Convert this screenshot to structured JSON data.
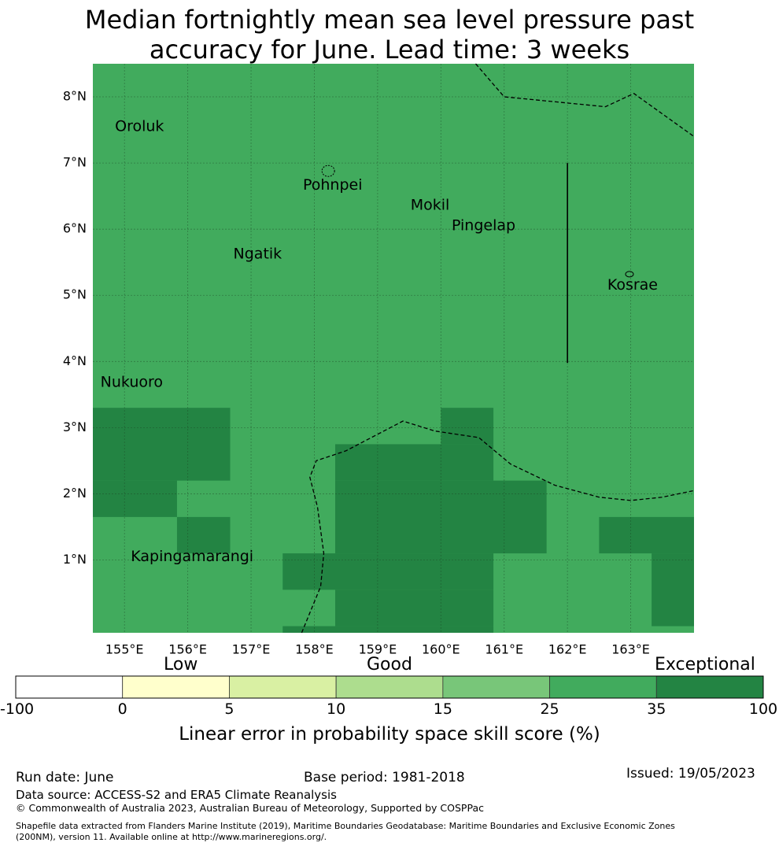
{
  "title": {
    "line1": "Median fortnightly mean sea level pressure past",
    "line2": "accuracy for June. Lead time: 3 weeks"
  },
  "map": {
    "lon_range": [
      154.5,
      164.0
    ],
    "lat_range": [
      -0.1,
      8.5
    ],
    "lon_ticks": [
      {
        "value": 155,
        "label": "155°E"
      },
      {
        "value": 156,
        "label": "156°E"
      },
      {
        "value": 157,
        "label": "157°E"
      },
      {
        "value": 158,
        "label": "158°E"
      },
      {
        "value": 159,
        "label": "159°E"
      },
      {
        "value": 160,
        "label": "160°E"
      },
      {
        "value": 161,
        "label": "161°E"
      },
      {
        "value": 162,
        "label": "162°E"
      },
      {
        "value": 163,
        "label": "163°E"
      }
    ],
    "lat_ticks": [
      {
        "value": 1,
        "label": "1°N"
      },
      {
        "value": 2,
        "label": "2°N"
      },
      {
        "value": 3,
        "label": "3°N"
      },
      {
        "value": 4,
        "label": "4°N"
      },
      {
        "value": 5,
        "label": "5°N"
      },
      {
        "value": 6,
        "label": "6°N"
      },
      {
        "value": 7,
        "label": "7°N"
      },
      {
        "value": 8,
        "label": "8°N"
      }
    ],
    "base_color": "#41ab5d",
    "exceptional_color": "#238443",
    "exceptional_cells": [
      {
        "lon": [
          154.5,
          156.67
        ],
        "lat": [
          2.2,
          3.3
        ]
      },
      {
        "lon": [
          154.5,
          155.83
        ],
        "lat": [
          1.65,
          2.2
        ]
      },
      {
        "lon": [
          155.83,
          156.67
        ],
        "lat": [
          1.1,
          1.65
        ]
      },
      {
        "lon": [
          160.0,
          160.83
        ],
        "lat": [
          2.75,
          3.3
        ]
      },
      {
        "lon": [
          158.33,
          160.83
        ],
        "lat": [
          2.2,
          2.75
        ]
      },
      {
        "lon": [
          158.33,
          161.67
        ],
        "lat": [
          1.1,
          2.2
        ]
      },
      {
        "lon": [
          157.5,
          160.83
        ],
        "lat": [
          0.55,
          1.1
        ]
      },
      {
        "lon": [
          158.33,
          160.83
        ],
        "lat": [
          0.0,
          0.55
        ]
      },
      {
        "lon": [
          157.5,
          160.83
        ],
        "lat": [
          -0.1,
          0.0
        ]
      },
      {
        "lon": [
          162.5,
          164.0
        ],
        "lat": [
          1.1,
          1.65
        ]
      },
      {
        "lon": [
          163.33,
          164.0
        ],
        "lat": [
          0.0,
          1.1
        ]
      }
    ],
    "places": [
      {
        "name": "Oroluk",
        "lon": 154.85,
        "lat": 7.55
      },
      {
        "name": "Pohnpei",
        "lon": 157.82,
        "lat": 6.66
      },
      {
        "name": "Mokil",
        "lon": 159.52,
        "lat": 6.36
      },
      {
        "name": "Pingelap",
        "lon": 160.17,
        "lat": 6.05
      },
      {
        "name": "Ngatik",
        "lon": 156.72,
        "lat": 5.62
      },
      {
        "name": "Kosrae",
        "lon": 162.63,
        "lat": 5.15
      },
      {
        "name": "Nukuoro",
        "lon": 154.62,
        "lat": 3.68
      },
      {
        "name": "Kapingamarangi",
        "lon": 155.1,
        "lat": 1.05
      }
    ],
    "eez_boundaries": [
      [
        [
          160.55,
          8.5
        ],
        [
          161.0,
          8.0
        ],
        [
          162.6,
          7.85
        ],
        [
          163.05,
          8.05
        ],
        [
          164.0,
          7.4
        ]
      ],
      [
        [
          157.8,
          -0.1
        ],
        [
          158.1,
          0.6
        ],
        [
          158.15,
          1.1
        ],
        [
          158.05,
          1.8
        ],
        [
          157.93,
          2.25
        ],
        [
          158.03,
          2.5
        ],
        [
          158.5,
          2.65
        ],
        [
          159.0,
          2.9
        ],
        [
          159.4,
          3.1
        ],
        [
          159.9,
          2.95
        ],
        [
          160.6,
          2.85
        ],
        [
          161.1,
          2.45
        ],
        [
          161.8,
          2.13
        ],
        [
          162.5,
          1.95
        ],
        [
          163.0,
          1.9
        ],
        [
          163.5,
          1.95
        ],
        [
          164.0,
          2.05
        ]
      ]
    ],
    "solid_line": [
      [
        162.0,
        7.0
      ],
      [
        162.0,
        3.98
      ]
    ]
  },
  "colorbar": {
    "boundaries": [
      -100,
      0,
      5,
      10,
      15,
      25,
      35,
      100
    ],
    "tick_labels": [
      "-100",
      "0",
      "5",
      "10",
      "15",
      "25",
      "35",
      "100"
    ],
    "colors": [
      "#ffffff",
      "#ffffcc",
      "#d9f0a3",
      "#addd8e",
      "#78c679",
      "#41ab5d",
      "#238443"
    ],
    "words": {
      "low": "Low",
      "good": "Good",
      "exceptional": "Exceptional"
    },
    "label": "Linear error in probability space skill score (%)"
  },
  "footer": {
    "run_date": "Run date: June",
    "base_period": "Base period: 1981-2018",
    "issued": "Issued: 19/05/2023",
    "data_source": "Data source: ACCESS-S2 and ERA5 Climate Reanalysis",
    "copyright": "© Commonwealth of Australia 2023, Australian Bureau of Meteorology, Supported by COSPPac",
    "shapefile_line1": "Shapefile data extracted from Flanders Marine Institute (2019), Maritime Boundaries Geodatabase: Maritime Boundaries and Exclusive Economic Zones",
    "shapefile_line2": "(200NM), version 11. Available online at http://www.marineregions.org/."
  }
}
